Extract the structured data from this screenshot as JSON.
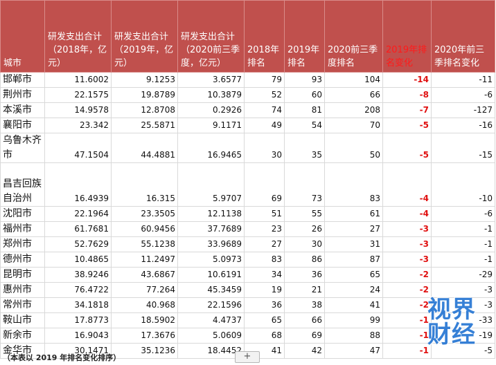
{
  "table": {
    "headers": [
      "城市",
      "研发支出合计（2018年，亿元）",
      "研发支出合计（2019年，亿元）",
      "研发支出合计（2020前三季度，亿元）",
      "2018年排名",
      "2019年排名",
      "2020前三季度排名",
      "2019年排名变化",
      "2020年前三季排名变化"
    ],
    "rows": [
      [
        "邯郸市",
        "11.6002",
        "9.1253",
        "3.6577",
        "79",
        "93",
        "104",
        "-14",
        "-11"
      ],
      [
        "荆州市",
        "22.1575",
        "19.8789",
        "10.3879",
        "52",
        "60",
        "66",
        "-8",
        "-6"
      ],
      [
        "本溪市",
        "14.9578",
        "12.8708",
        "0.2926",
        "74",
        "81",
        "208",
        "-7",
        "-127"
      ],
      [
        "襄阳市",
        "23.342",
        "25.5871",
        "9.1171",
        "49",
        "54",
        "70",
        "-5",
        "-16"
      ],
      [
        "乌鲁木齐市",
        "47.1504",
        "44.4881",
        "16.9465",
        "30",
        "35",
        "50",
        "-5",
        "-15"
      ],
      [
        "昌吉回族自治州",
        "16.4939",
        "16.315",
        "5.9707",
        "69",
        "73",
        "83",
        "-4",
        "-10"
      ],
      [
        "沈阳市",
        "22.1964",
        "23.3505",
        "12.1138",
        "51",
        "55",
        "61",
        "-4",
        "-6"
      ],
      [
        "福州市",
        "61.7681",
        "60.9456",
        "37.7689",
        "23",
        "26",
        "27",
        "-3",
        "-1"
      ],
      [
        "郑州市",
        "52.7629",
        "55.1238",
        "33.9689",
        "27",
        "30",
        "31",
        "-3",
        "-1"
      ],
      [
        "德州市",
        "10.4865",
        "11.2497",
        "5.0973",
        "83",
        "86",
        "87",
        "-3",
        "-1"
      ],
      [
        "昆明市",
        "38.9246",
        "43.6867",
        "10.6191",
        "34",
        "36",
        "65",
        "-2",
        "-29"
      ],
      [
        "惠州市",
        "76.4722",
        "77.264",
        "45.3459",
        "19",
        "21",
        "24",
        "-2",
        "-3"
      ],
      [
        "常州市",
        "34.1818",
        "40.968",
        "22.1596",
        "36",
        "38",
        "41",
        "-2",
        "-3"
      ],
      [
        "鞍山市",
        "17.8773",
        "18.5902",
        "4.4737",
        "65",
        "66",
        "99",
        "-1",
        "-33"
      ],
      [
        "新余市",
        "16.9043",
        "17.3676",
        "5.0609",
        "68",
        "69",
        "88",
        "-1",
        "-19"
      ],
      [
        "金华市",
        "30.1471",
        "35.1236",
        "18.4452",
        "41",
        "42",
        "47",
        "-1",
        "-5"
      ]
    ]
  },
  "footnote": "（本表以 2019 年排名变化排序）",
  "add_sheet_label": "+",
  "watermark": {
    "line1": "视界",
    "line2": "财经"
  },
  "colors": {
    "header_bg": "#c0504d",
    "header_text": "#ffffff",
    "highlight": "#e01010",
    "watermark": "#1b6fd1"
  }
}
